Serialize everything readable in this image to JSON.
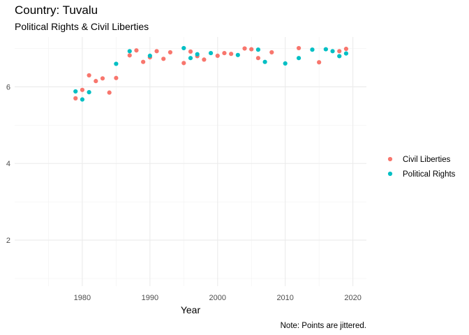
{
  "chart_data": {
    "type": "scatter",
    "title": "Country: Tuvalu",
    "subtitle": "Political Rights & Civil Liberties",
    "xlabel": "Year",
    "ylabel": "",
    "caption": "Note: Points are jittered.",
    "xlim": [
      1970,
      2022
    ],
    "ylim": [
      0.8,
      7.3
    ],
    "xticks": [
      1980,
      1990,
      2000,
      2010,
      2020
    ],
    "yticks": [
      2,
      4,
      6
    ],
    "grid": true,
    "legend_position": "right",
    "series": [
      {
        "name": "Civil Liberties",
        "color": "#F8766D",
        "points": [
          [
            1979,
            5.7
          ],
          [
            1980,
            5.92
          ],
          [
            1981,
            6.3
          ],
          [
            1982,
            6.15
          ],
          [
            1983,
            6.22
          ],
          [
            1984,
            5.85
          ],
          [
            1985,
            6.23
          ],
          [
            1987,
            6.82
          ],
          [
            1988,
            6.95
          ],
          [
            1989,
            6.65
          ],
          [
            1990,
            6.77
          ],
          [
            1991,
            6.93
          ],
          [
            1992,
            6.73
          ],
          [
            1993,
            6.9
          ],
          [
            1995,
            6.62
          ],
          [
            1996,
            6.92
          ],
          [
            1997,
            6.8
          ],
          [
            1998,
            6.71
          ],
          [
            2000,
            6.81
          ],
          [
            2001,
            6.88
          ],
          [
            2002,
            6.86
          ],
          [
            2004,
            7.0
          ],
          [
            2005,
            6.98
          ],
          [
            2006,
            6.75
          ],
          [
            2008,
            6.9
          ],
          [
            2012,
            7.01
          ],
          [
            2015,
            6.64
          ],
          [
            2018,
            6.93
          ],
          [
            2019,
            6.99
          ]
        ]
      },
      {
        "name": "Political Rights",
        "color": "#00BFC4",
        "points": [
          [
            1979,
            5.88
          ],
          [
            1980,
            5.67
          ],
          [
            1981,
            5.86
          ],
          [
            1985,
            6.6
          ],
          [
            1987,
            6.93
          ],
          [
            1990,
            6.81
          ],
          [
            1995,
            7.01
          ],
          [
            1996,
            6.75
          ],
          [
            1997,
            6.85
          ],
          [
            1999,
            6.88
          ],
          [
            2003,
            6.83
          ],
          [
            2006,
            6.97
          ],
          [
            2007,
            6.65
          ],
          [
            2010,
            6.61
          ],
          [
            2012,
            6.75
          ],
          [
            2014,
            6.97
          ],
          [
            2016,
            6.98
          ],
          [
            2017,
            6.93
          ],
          [
            2018,
            6.8
          ],
          [
            2019,
            6.87
          ]
        ]
      }
    ]
  }
}
